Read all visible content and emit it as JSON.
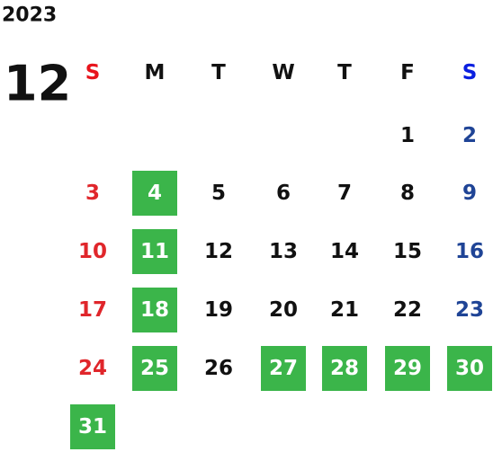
{
  "year": "2023",
  "month": "12",
  "weekdays": [
    {
      "label": "S",
      "color": "#e8141c"
    },
    {
      "label": "M",
      "color": "#111111"
    },
    {
      "label": "T",
      "color": "#111111"
    },
    {
      "label": "W",
      "color": "#111111"
    },
    {
      "label": "T",
      "color": "#111111"
    },
    {
      "label": "F",
      "color": "#111111"
    },
    {
      "label": "S",
      "color": "#0a1fe0"
    }
  ],
  "day_colors": [
    "#e0262b",
    "#111111",
    "#111111",
    "#111111",
    "#111111",
    "#111111",
    "#1f4496"
  ],
  "highlight_color": "#3bb54a",
  "weeks": [
    [
      null,
      null,
      null,
      null,
      null,
      {
        "day": 1
      },
      {
        "day": 2
      }
    ],
    [
      {
        "day": 3
      },
      {
        "day": 4,
        "highlight": true
      },
      {
        "day": 5
      },
      {
        "day": 6
      },
      {
        "day": 7
      },
      {
        "day": 8
      },
      {
        "day": 9
      }
    ],
    [
      {
        "day": 10
      },
      {
        "day": 11,
        "highlight": true
      },
      {
        "day": 12
      },
      {
        "day": 13
      },
      {
        "day": 14
      },
      {
        "day": 15
      },
      {
        "day": 16
      }
    ],
    [
      {
        "day": 17
      },
      {
        "day": 18,
        "highlight": true
      },
      {
        "day": 19
      },
      {
        "day": 20
      },
      {
        "day": 21
      },
      {
        "day": 22
      },
      {
        "day": 23
      }
    ],
    [
      {
        "day": 24
      },
      {
        "day": 25,
        "highlight": true
      },
      {
        "day": 26
      },
      {
        "day": 27,
        "highlight": true
      },
      {
        "day": 28,
        "highlight": true
      },
      {
        "day": 29,
        "highlight": true
      },
      {
        "day": 30,
        "highlight": true
      }
    ],
    [
      {
        "day": 31,
        "highlight": true
      },
      null,
      null,
      null,
      null,
      null,
      null
    ]
  ]
}
